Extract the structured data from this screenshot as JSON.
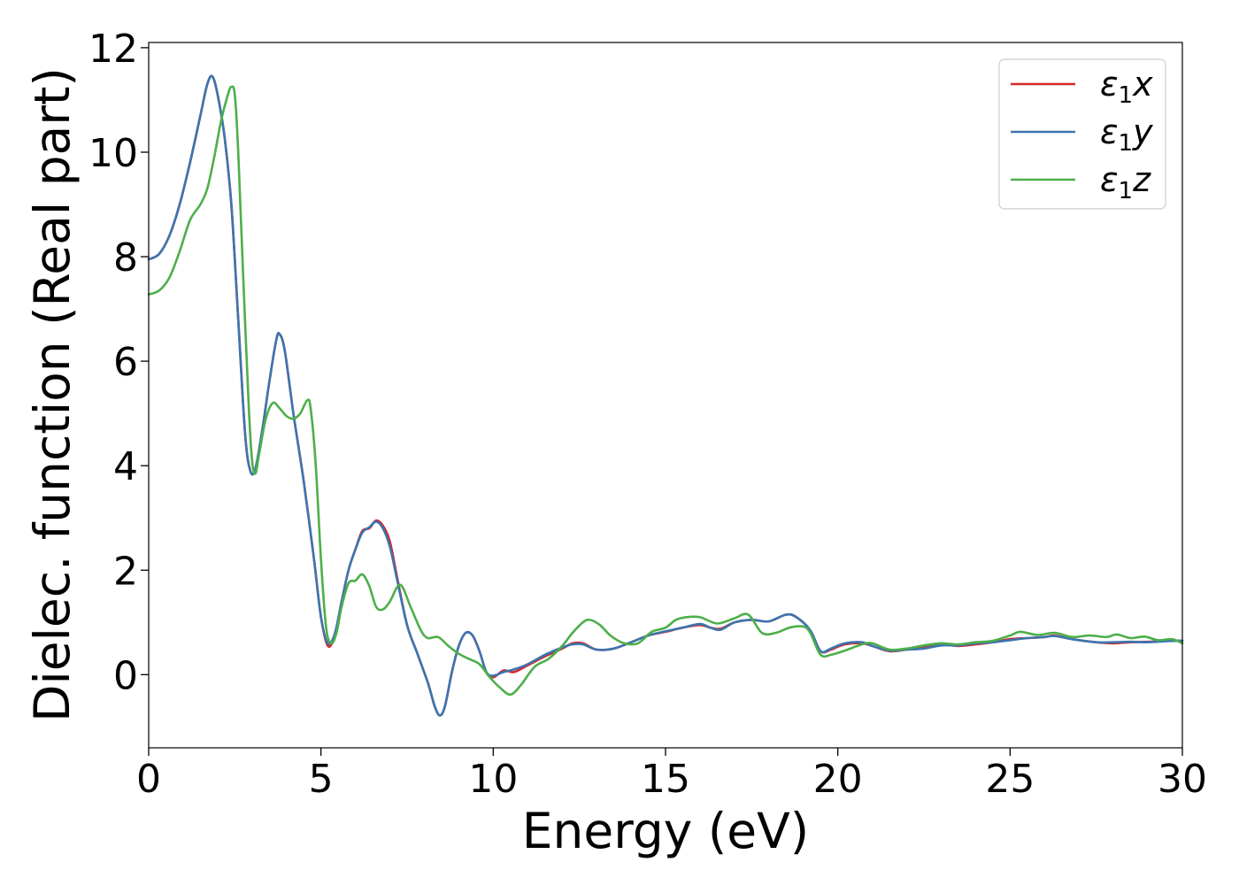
{
  "chart_data": {
    "type": "line",
    "title": "",
    "xlabel": "Energy (eV)",
    "ylabel": "Dielec. function (Real part)",
    "xlim": [
      0,
      30
    ],
    "ylim": [
      -1.4,
      12.1
    ],
    "xticks": [
      "0",
      "5",
      "10",
      "15",
      "20",
      "25",
      "30"
    ],
    "yticks": [
      "0",
      "2",
      "4",
      "6",
      "8",
      "10",
      "12"
    ],
    "grid": false,
    "legend_position": "top-right",
    "series": [
      {
        "name": "ε₁x",
        "legend_sym": "ε",
        "legend_sub": "1",
        "legend_var": "x",
        "color": "#d62728",
        "points": [
          [
            0,
            7.95
          ],
          [
            0.3,
            8.05
          ],
          [
            0.6,
            8.4
          ],
          [
            0.9,
            9.0
          ],
          [
            1.2,
            9.8
          ],
          [
            1.5,
            10.7
          ],
          [
            1.7,
            11.3
          ],
          [
            1.85,
            11.45
          ],
          [
            2.0,
            11.1
          ],
          [
            2.2,
            10.3
          ],
          [
            2.4,
            9.0
          ],
          [
            2.6,
            6.8
          ],
          [
            2.8,
            4.6
          ],
          [
            2.95,
            3.9
          ],
          [
            3.1,
            3.95
          ],
          [
            3.3,
            4.7
          ],
          [
            3.5,
            5.6
          ],
          [
            3.7,
            6.4
          ],
          [
            3.8,
            6.52
          ],
          [
            3.95,
            6.2
          ],
          [
            4.2,
            5.0
          ],
          [
            4.5,
            3.7
          ],
          [
            4.8,
            2.2
          ],
          [
            5.0,
            1.1
          ],
          [
            5.2,
            0.55
          ],
          [
            5.4,
            0.75
          ],
          [
            5.6,
            1.4
          ],
          [
            5.8,
            2.0
          ],
          [
            6.0,
            2.4
          ],
          [
            6.2,
            2.75
          ],
          [
            6.4,
            2.8
          ],
          [
            6.6,
            2.95
          ],
          [
            6.8,
            2.85
          ],
          [
            7.0,
            2.55
          ],
          [
            7.2,
            1.9
          ],
          [
            7.5,
            0.95
          ],
          [
            7.8,
            0.4
          ],
          [
            8.1,
            -0.15
          ],
          [
            8.3,
            -0.6
          ],
          [
            8.45,
            -0.78
          ],
          [
            8.6,
            -0.6
          ],
          [
            8.8,
            0.05
          ],
          [
            9.0,
            0.55
          ],
          [
            9.2,
            0.8
          ],
          [
            9.4,
            0.75
          ],
          [
            9.6,
            0.45
          ],
          [
            9.8,
            0.05
          ],
          [
            10.0,
            -0.05
          ],
          [
            10.3,
            0.08
          ],
          [
            10.6,
            0.05
          ],
          [
            11.0,
            0.18
          ],
          [
            11.5,
            0.35
          ],
          [
            12.0,
            0.5
          ],
          [
            12.3,
            0.6
          ],
          [
            12.6,
            0.6
          ],
          [
            13.0,
            0.48
          ],
          [
            13.5,
            0.5
          ],
          [
            14.0,
            0.62
          ],
          [
            14.5,
            0.75
          ],
          [
            15.0,
            0.82
          ],
          [
            15.5,
            0.9
          ],
          [
            16.0,
            0.95
          ],
          [
            16.3,
            0.9
          ],
          [
            16.6,
            0.88
          ],
          [
            17.0,
            1.0
          ],
          [
            17.5,
            1.05
          ],
          [
            18.0,
            1.02
          ],
          [
            18.5,
            1.15
          ],
          [
            18.8,
            1.1
          ],
          [
            19.2,
            0.85
          ],
          [
            19.5,
            0.45
          ],
          [
            19.8,
            0.48
          ],
          [
            20.2,
            0.58
          ],
          [
            20.7,
            0.6
          ],
          [
            21.0,
            0.55
          ],
          [
            21.5,
            0.45
          ],
          [
            22.0,
            0.48
          ],
          [
            22.5,
            0.52
          ],
          [
            23.0,
            0.58
          ],
          [
            23.5,
            0.55
          ],
          [
            24.0,
            0.58
          ],
          [
            24.5,
            0.62
          ],
          [
            25.0,
            0.68
          ],
          [
            25.5,
            0.7
          ],
          [
            26.0,
            0.72
          ],
          [
            26.3,
            0.75
          ],
          [
            26.8,
            0.68
          ],
          [
            27.5,
            0.62
          ],
          [
            28.0,
            0.6
          ],
          [
            28.5,
            0.62
          ],
          [
            29.0,
            0.63
          ],
          [
            29.5,
            0.65
          ],
          [
            30.0,
            0.65
          ]
        ]
      },
      {
        "name": "ε₁y",
        "legend_sym": "ε",
        "legend_sub": "1",
        "legend_var": "y",
        "color": "#3b75af",
        "points": [
          [
            0,
            7.95
          ],
          [
            0.3,
            8.05
          ],
          [
            0.6,
            8.4
          ],
          [
            0.9,
            9.0
          ],
          [
            1.2,
            9.8
          ],
          [
            1.5,
            10.7
          ],
          [
            1.7,
            11.3
          ],
          [
            1.85,
            11.45
          ],
          [
            2.0,
            11.1
          ],
          [
            2.2,
            10.3
          ],
          [
            2.4,
            9.0
          ],
          [
            2.6,
            6.8
          ],
          [
            2.8,
            4.6
          ],
          [
            2.95,
            3.9
          ],
          [
            3.1,
            3.95
          ],
          [
            3.3,
            4.7
          ],
          [
            3.5,
            5.6
          ],
          [
            3.7,
            6.4
          ],
          [
            3.8,
            6.52
          ],
          [
            3.95,
            6.2
          ],
          [
            4.2,
            5.0
          ],
          [
            4.5,
            3.7
          ],
          [
            4.8,
            2.2
          ],
          [
            5.0,
            1.1
          ],
          [
            5.2,
            0.6
          ],
          [
            5.4,
            0.78
          ],
          [
            5.6,
            1.4
          ],
          [
            5.8,
            2.0
          ],
          [
            6.0,
            2.4
          ],
          [
            6.2,
            2.72
          ],
          [
            6.4,
            2.82
          ],
          [
            6.6,
            2.93
          ],
          [
            6.8,
            2.8
          ],
          [
            7.0,
            2.45
          ],
          [
            7.2,
            1.85
          ],
          [
            7.5,
            0.95
          ],
          [
            7.8,
            0.4
          ],
          [
            8.1,
            -0.15
          ],
          [
            8.3,
            -0.6
          ],
          [
            8.45,
            -0.78
          ],
          [
            8.6,
            -0.6
          ],
          [
            8.8,
            0.05
          ],
          [
            9.0,
            0.55
          ],
          [
            9.2,
            0.8
          ],
          [
            9.4,
            0.75
          ],
          [
            9.6,
            0.45
          ],
          [
            9.8,
            0.05
          ],
          [
            10.0,
            -0.02
          ],
          [
            10.3,
            0.05
          ],
          [
            10.6,
            0.1
          ],
          [
            11.0,
            0.2
          ],
          [
            11.5,
            0.38
          ],
          [
            12.0,
            0.52
          ],
          [
            12.3,
            0.58
          ],
          [
            12.6,
            0.58
          ],
          [
            13.0,
            0.48
          ],
          [
            13.5,
            0.5
          ],
          [
            14.0,
            0.62
          ],
          [
            14.5,
            0.75
          ],
          [
            15.0,
            0.83
          ],
          [
            15.5,
            0.9
          ],
          [
            16.0,
            0.97
          ],
          [
            16.3,
            0.9
          ],
          [
            16.6,
            0.86
          ],
          [
            17.0,
            1.0
          ],
          [
            17.5,
            1.05
          ],
          [
            18.0,
            1.02
          ],
          [
            18.5,
            1.15
          ],
          [
            18.8,
            1.1
          ],
          [
            19.2,
            0.85
          ],
          [
            19.5,
            0.45
          ],
          [
            19.8,
            0.5
          ],
          [
            20.2,
            0.6
          ],
          [
            20.7,
            0.62
          ],
          [
            21.0,
            0.55
          ],
          [
            21.5,
            0.46
          ],
          [
            22.0,
            0.48
          ],
          [
            22.5,
            0.5
          ],
          [
            23.0,
            0.56
          ],
          [
            23.5,
            0.56
          ],
          [
            24.0,
            0.6
          ],
          [
            24.5,
            0.62
          ],
          [
            25.0,
            0.66
          ],
          [
            25.5,
            0.7
          ],
          [
            26.0,
            0.72
          ],
          [
            26.3,
            0.74
          ],
          [
            26.8,
            0.68
          ],
          [
            27.5,
            0.62
          ],
          [
            28.0,
            0.62
          ],
          [
            28.5,
            0.63
          ],
          [
            29.0,
            0.62
          ],
          [
            29.5,
            0.64
          ],
          [
            30.0,
            0.65
          ]
        ]
      },
      {
        "name": "ε₁z",
        "legend_sym": "ε",
        "legend_sub": "1",
        "legend_var": "z",
        "color": "#4daf4a",
        "points": [
          [
            0,
            7.28
          ],
          [
            0.3,
            7.35
          ],
          [
            0.6,
            7.6
          ],
          [
            0.9,
            8.1
          ],
          [
            1.2,
            8.7
          ],
          [
            1.5,
            9.0
          ],
          [
            1.7,
            9.3
          ],
          [
            1.9,
            9.9
          ],
          [
            2.1,
            10.6
          ],
          [
            2.3,
            11.1
          ],
          [
            2.4,
            11.25
          ],
          [
            2.5,
            11.1
          ],
          [
            2.6,
            10.0
          ],
          [
            2.75,
            7.5
          ],
          [
            2.9,
            5.2
          ],
          [
            3.0,
            4.1
          ],
          [
            3.1,
            3.85
          ],
          [
            3.2,
            4.2
          ],
          [
            3.4,
            4.9
          ],
          [
            3.6,
            5.2
          ],
          [
            3.8,
            5.1
          ],
          [
            4.0,
            4.95
          ],
          [
            4.2,
            4.9
          ],
          [
            4.4,
            5.0
          ],
          [
            4.6,
            5.25
          ],
          [
            4.7,
            5.1
          ],
          [
            4.85,
            4.0
          ],
          [
            5.0,
            2.2
          ],
          [
            5.15,
            0.9
          ],
          [
            5.3,
            0.6
          ],
          [
            5.45,
            0.8
          ],
          [
            5.6,
            1.3
          ],
          [
            5.8,
            1.75
          ],
          [
            6.0,
            1.8
          ],
          [
            6.2,
            1.92
          ],
          [
            6.4,
            1.7
          ],
          [
            6.6,
            1.3
          ],
          [
            6.8,
            1.25
          ],
          [
            7.0,
            1.4
          ],
          [
            7.3,
            1.72
          ],
          [
            7.6,
            1.3
          ],
          [
            7.9,
            0.85
          ],
          [
            8.1,
            0.7
          ],
          [
            8.4,
            0.72
          ],
          [
            8.7,
            0.55
          ],
          [
            9.0,
            0.4
          ],
          [
            9.3,
            0.3
          ],
          [
            9.6,
            0.2
          ],
          [
            9.9,
            -0.05
          ],
          [
            10.2,
            -0.25
          ],
          [
            10.5,
            -0.38
          ],
          [
            10.8,
            -0.2
          ],
          [
            11.2,
            0.15
          ],
          [
            11.6,
            0.3
          ],
          [
            12.0,
            0.55
          ],
          [
            12.3,
            0.8
          ],
          [
            12.6,
            1.0
          ],
          [
            12.8,
            1.05
          ],
          [
            13.1,
            0.95
          ],
          [
            13.4,
            0.75
          ],
          [
            13.8,
            0.6
          ],
          [
            14.2,
            0.6
          ],
          [
            14.6,
            0.82
          ],
          [
            15.0,
            0.9
          ],
          [
            15.3,
            1.05
          ],
          [
            15.6,
            1.1
          ],
          [
            16.0,
            1.1
          ],
          [
            16.5,
            0.98
          ],
          [
            17.0,
            1.08
          ],
          [
            17.4,
            1.15
          ],
          [
            17.8,
            0.8
          ],
          [
            18.2,
            0.8
          ],
          [
            18.6,
            0.9
          ],
          [
            19.0,
            0.92
          ],
          [
            19.2,
            0.8
          ],
          [
            19.5,
            0.38
          ],
          [
            19.8,
            0.38
          ],
          [
            20.2,
            0.46
          ],
          [
            20.7,
            0.58
          ],
          [
            21.0,
            0.6
          ],
          [
            21.5,
            0.48
          ],
          [
            22.0,
            0.5
          ],
          [
            22.5,
            0.56
          ],
          [
            23.0,
            0.6
          ],
          [
            23.5,
            0.58
          ],
          [
            24.0,
            0.62
          ],
          [
            24.5,
            0.65
          ],
          [
            25.0,
            0.75
          ],
          [
            25.3,
            0.82
          ],
          [
            25.8,
            0.76
          ],
          [
            26.3,
            0.8
          ],
          [
            26.8,
            0.72
          ],
          [
            27.3,
            0.75
          ],
          [
            27.8,
            0.72
          ],
          [
            28.1,
            0.77
          ],
          [
            28.5,
            0.7
          ],
          [
            28.9,
            0.73
          ],
          [
            29.3,
            0.66
          ],
          [
            29.7,
            0.68
          ],
          [
            30.0,
            0.6
          ]
        ]
      }
    ]
  }
}
